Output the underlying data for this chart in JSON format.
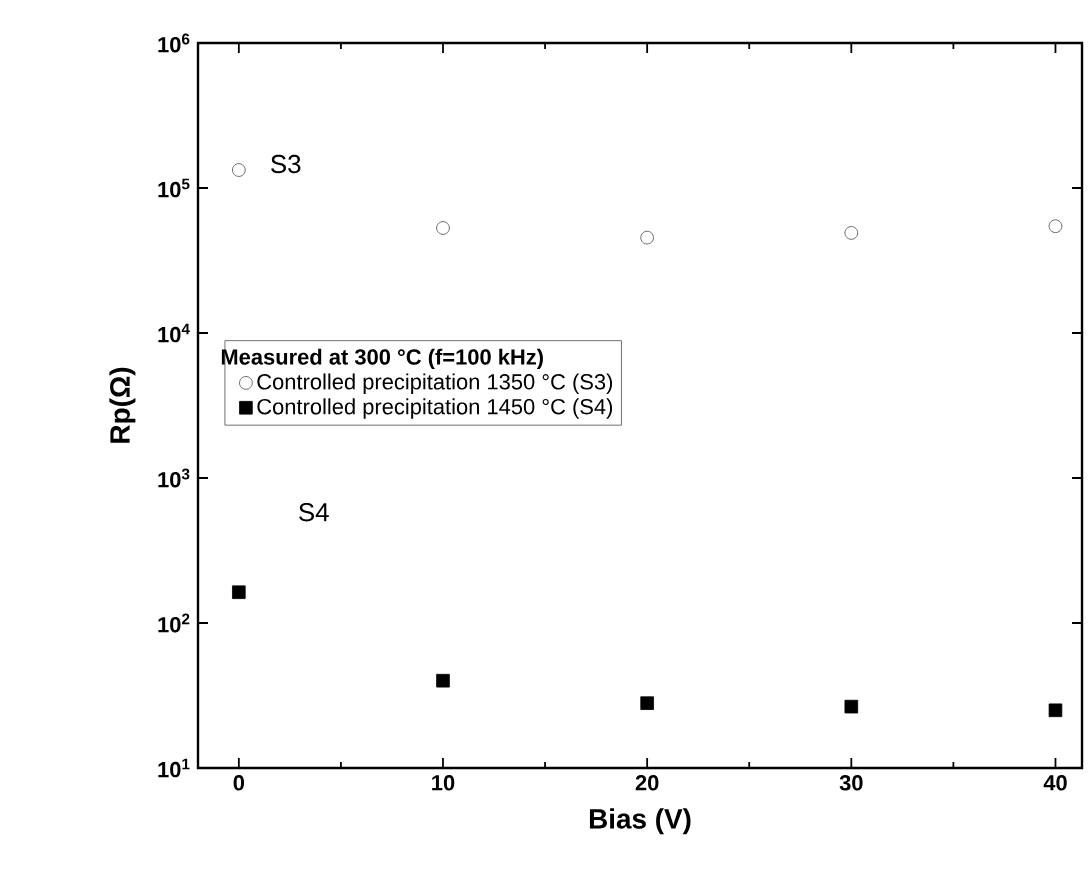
{
  "chart_data": {
    "type": "scatter",
    "xlabel": "Bias (V)",
    "ylabel": "Rp(Ω)",
    "log": "y",
    "x": [
      0,
      10,
      20,
      30,
      40
    ],
    "series": [
      {
        "name": "Controlled precipitation 1350 °C (S3)",
        "color": "#444444",
        "marker": "circle",
        "values": [
          133000,
          53000,
          45500,
          49000,
          54500
        ]
      },
      {
        "name": "Controlled precipitation 1450 °C (S4)",
        "color": "#000000",
        "marker": "square",
        "values": [
          163,
          40,
          28,
          26.5,
          25
        ]
      }
    ],
    "legend_title": "**Measured at 300 °C  (f=100 kHz)**",
    "legend": "left",
    "annotations": [
      "S3",
      "S4"
    ],
    "xlim": [
      -2,
      41.3
    ],
    "xticks": [
      0,
      10,
      20,
      30,
      40
    ],
    "ylim": [
      10,
      1000000
    ],
    "yticks": [
      {
        "value": 10,
        "label": "10$^{1}$"
      },
      {
        "value": 100,
        "label": "10$^{2}$"
      },
      {
        "value": 1000,
        "label": "10$^{3}$"
      },
      {
        "value": 10000,
        "label": "10$^{4}$"
      },
      {
        "value": 100000,
        "label": "10$^{5}$"
      },
      {
        "value": 1000000,
        "label": "10$^{6}$"
      }
    ],
    "grid": false
  }
}
